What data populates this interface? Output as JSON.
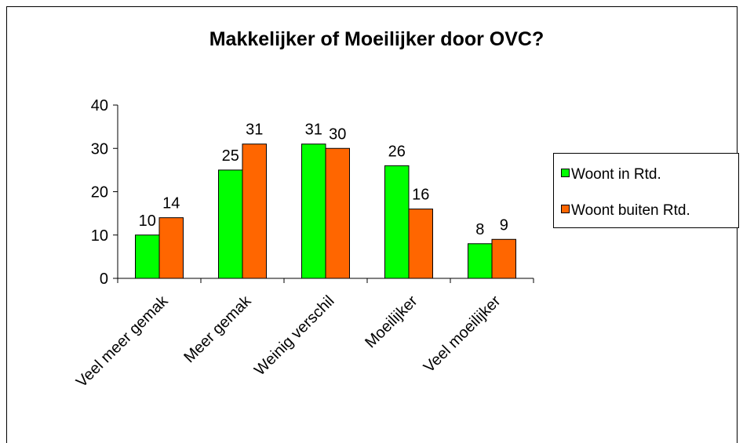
{
  "chart_data": {
    "type": "bar",
    "title": "Makkelijker of Moeilijker door OVC?",
    "categories": [
      "Veel meer gemak",
      "Meer gemak",
      "Weinig verschil",
      "Moeilijker",
      "Veel moeilijker"
    ],
    "series": [
      {
        "name": "Woont in Rtd.",
        "color": "#00ff00",
        "values": [
          10,
          25,
          31,
          26,
          8
        ]
      },
      {
        "name": "Woont buiten Rtd.",
        "color": "#ff6600",
        "values": [
          14,
          31,
          30,
          16,
          9
        ]
      }
    ],
    "ylim": [
      0,
      40
    ],
    "yticks": [
      0,
      10,
      20,
      30,
      40
    ],
    "legend": "right"
  }
}
